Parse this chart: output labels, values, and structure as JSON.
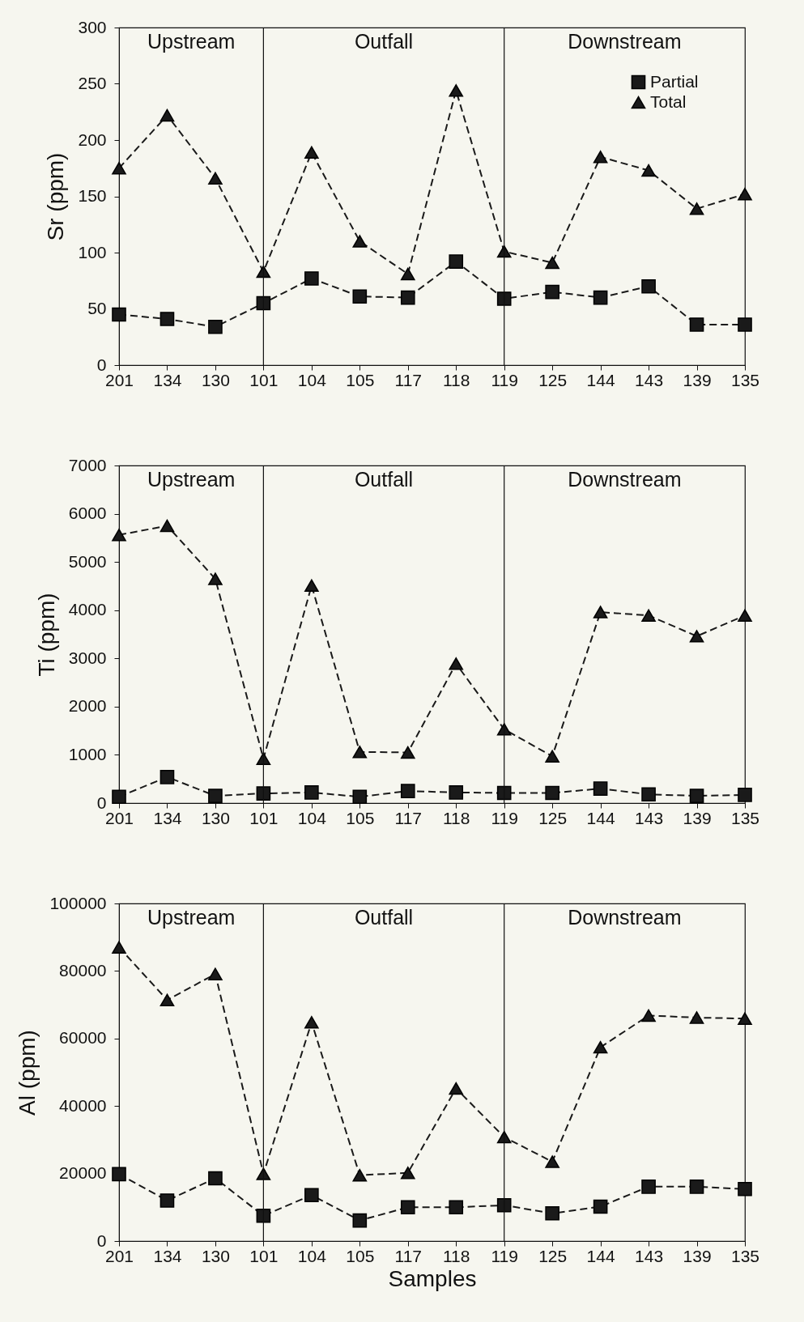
{
  "chart_data": [
    {
      "type": "line",
      "ylabel": "Sr (ppm)",
      "categories": [
        "201",
        "134",
        "130",
        "101",
        "104",
        "105",
        "117",
        "118",
        "119",
        "125",
        "144",
        "143",
        "139",
        "135"
      ],
      "series": [
        {
          "name": "Partial",
          "color": "#1a1a1a",
          "marker": "square",
          "line_style": "dashed",
          "values": [
            45,
            41,
            34,
            55,
            77,
            61,
            60,
            92,
            59,
            65,
            60,
            70,
            36,
            36
          ]
        },
        {
          "name": "Total",
          "color": "#1a1a1a",
          "marker": "triangle",
          "line_style": "dashed",
          "values": [
            175,
            222,
            166,
            83,
            189,
            110,
            81,
            244,
            101,
            91,
            185,
            173,
            139,
            152
          ]
        }
      ],
      "ylim": [
        0,
        300
      ],
      "yticks": [
        0,
        50,
        100,
        150,
        200,
        250,
        300
      ],
      "grid": false,
      "legend": "top right",
      "ref_lines": [
        {
          "axis": "x",
          "value": "101"
        },
        {
          "axis": "x",
          "value": "119"
        }
      ],
      "annotations": [
        "Upstream",
        "Outfall",
        "Downstream"
      ]
    },
    {
      "type": "line",
      "ylabel": "Ti (ppm)",
      "categories": [
        "201",
        "134",
        "130",
        "101",
        "104",
        "105",
        "117",
        "118",
        "119",
        "125",
        "144",
        "143",
        "139",
        "135"
      ],
      "series": [
        {
          "color": "#1a1a1a",
          "marker": "square",
          "line_style": "dashed",
          "values": [
            130,
            540,
            150,
            200,
            220,
            130,
            250,
            220,
            210,
            210,
            300,
            180,
            150,
            170
          ]
        },
        {
          "color": "#1a1a1a",
          "marker": "triangle",
          "line_style": "dashed",
          "values": [
            5560,
            5750,
            4650,
            920,
            4510,
            1060,
            1050,
            2890,
            1530,
            970,
            3960,
            3890,
            3460,
            3890
          ]
        }
      ],
      "ylim": [
        0,
        7000
      ],
      "yticks": [
        0,
        1000,
        2000,
        3000,
        4000,
        5000,
        6000,
        7000
      ],
      "grid": false,
      "legend": false,
      "ref_lines": [
        {
          "axis": "x",
          "value": "101"
        },
        {
          "axis": "x",
          "value": "119"
        }
      ],
      "annotations": [
        "Upstream",
        "Outfall",
        "Downstream"
      ]
    },
    {
      "type": "line",
      "xlabel": "Samples",
      "ylabel": "Al (ppm)",
      "categories": [
        "201",
        "134",
        "130",
        "101",
        "104",
        "105",
        "117",
        "118",
        "119",
        "125",
        "144",
        "143",
        "139",
        "135"
      ],
      "series": [
        {
          "color": "#1a1a1a",
          "marker": "square",
          "line_style": "dashed",
          "values": [
            19800,
            12000,
            18600,
            7500,
            13600,
            6100,
            10000,
            10000,
            10600,
            8200,
            10200,
            16100,
            16100,
            15400
          ]
        },
        {
          "color": "#1a1a1a",
          "marker": "triangle",
          "line_style": "dashed",
          "values": [
            87000,
            71400,
            79100,
            19900,
            64800,
            19500,
            20200,
            45200,
            30800,
            23500,
            57400,
            66800,
            66200,
            65900
          ]
        }
      ],
      "ylim": [
        0,
        100000
      ],
      "yticks": [
        0,
        20000,
        40000,
        60000,
        80000,
        100000
      ],
      "grid": false,
      "legend": false,
      "ref_lines": [
        {
          "axis": "x",
          "value": "101"
        },
        {
          "axis": "x",
          "value": "119"
        }
      ],
      "annotations": [
        "Upstream",
        "Outfall",
        "Downstream"
      ]
    }
  ]
}
